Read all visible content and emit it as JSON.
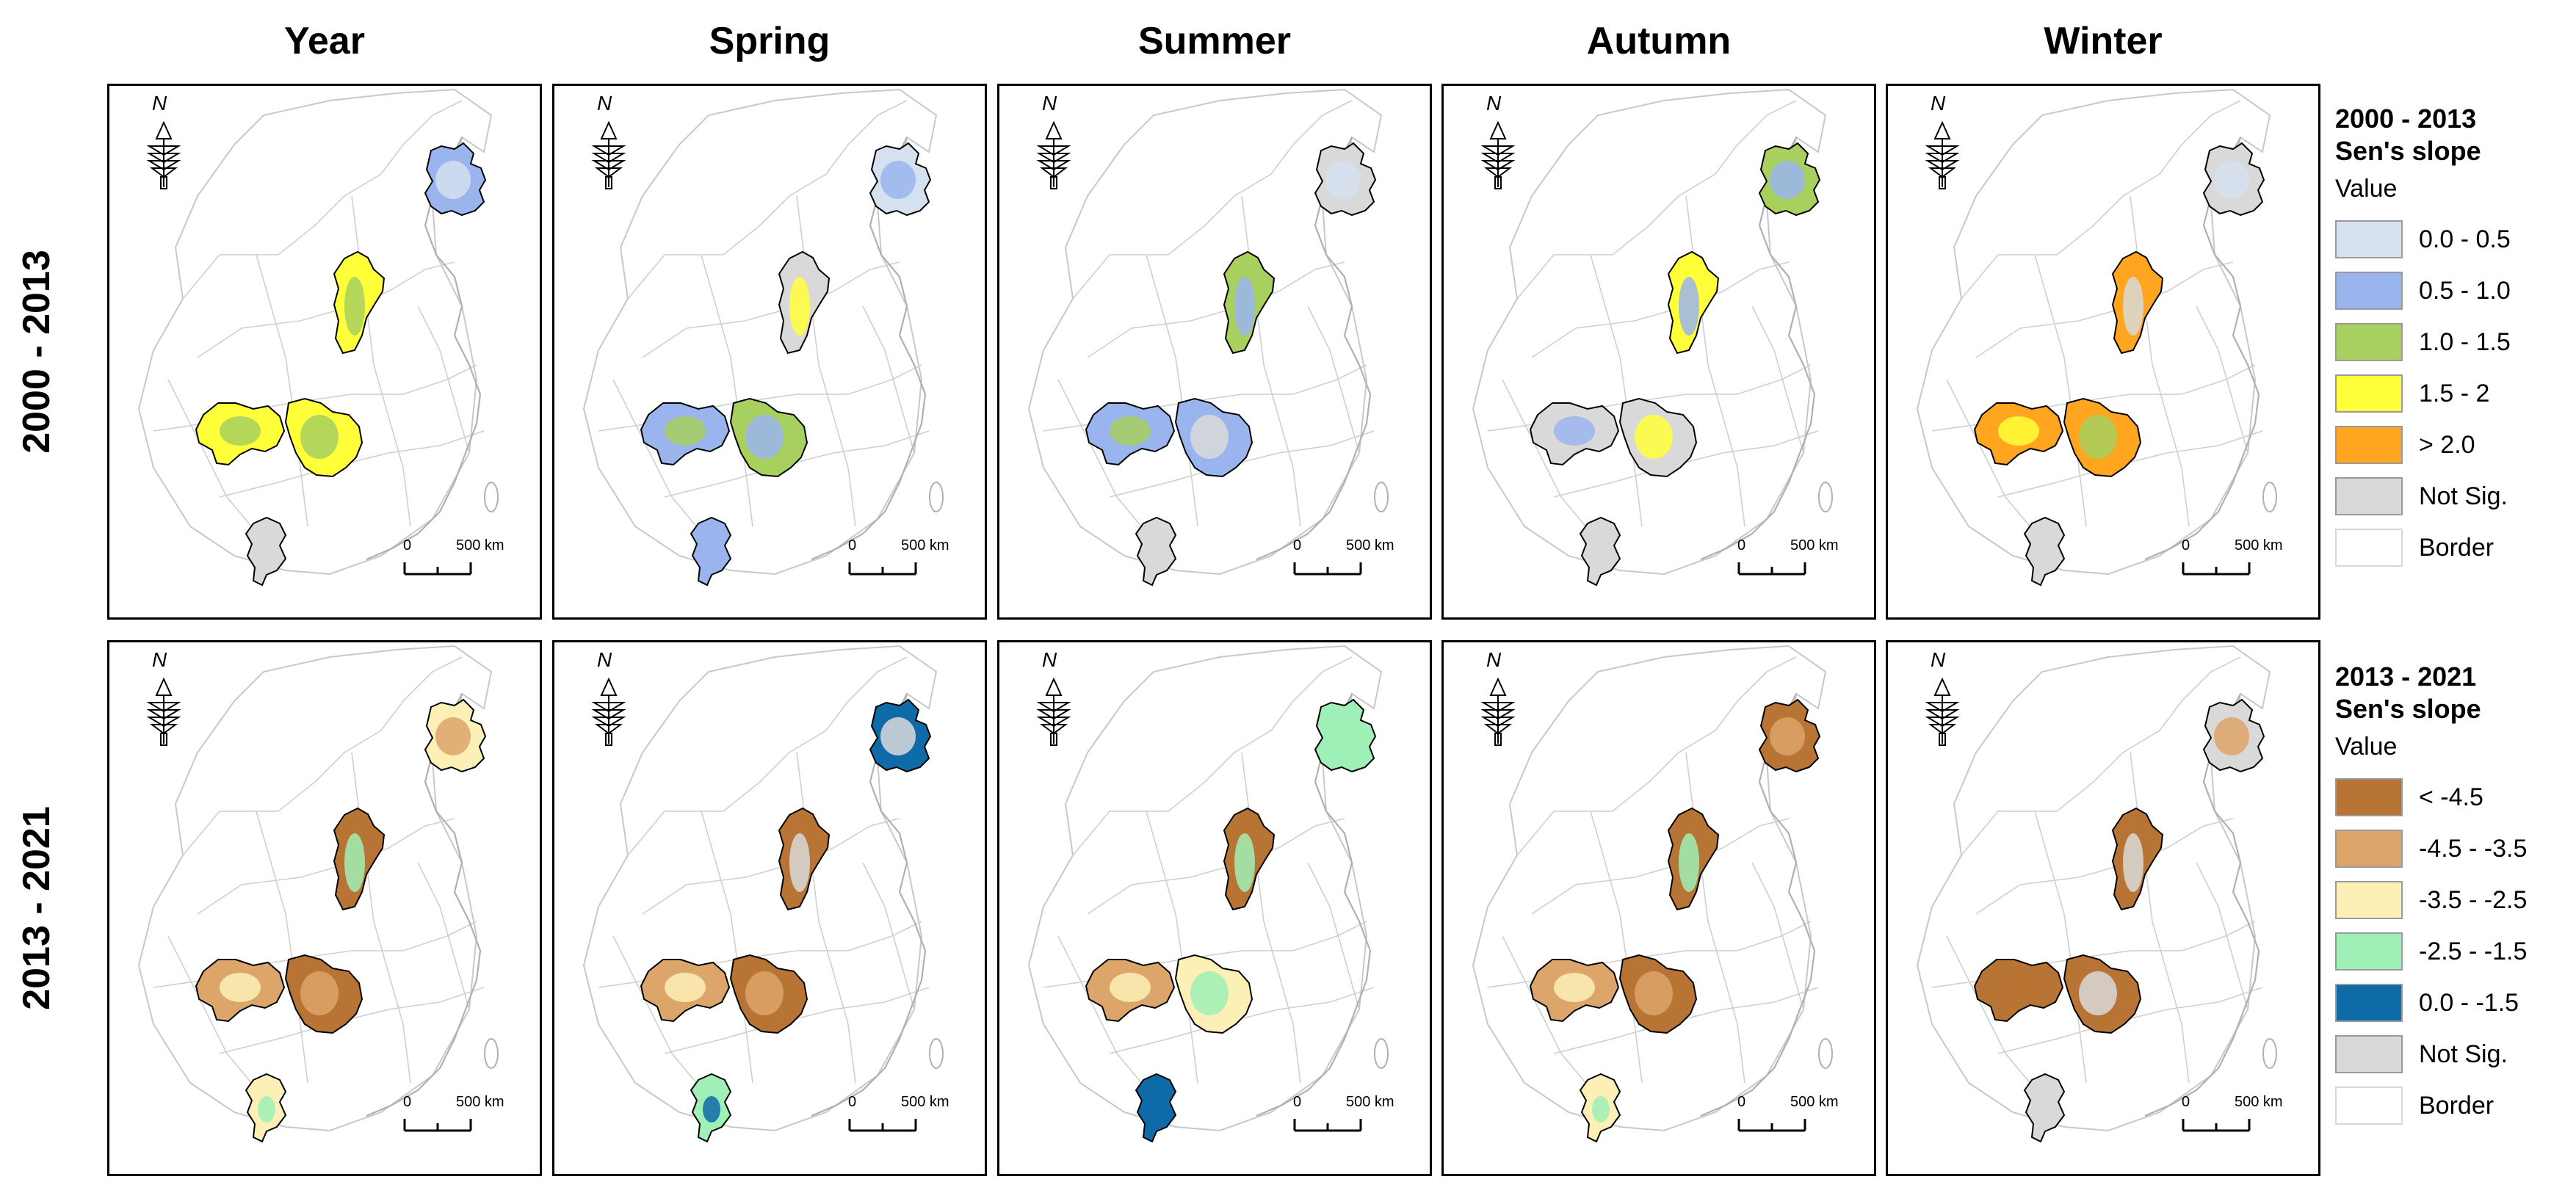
{
  "columns": [
    "Year",
    "Spring",
    "Summer",
    "Autumn",
    "Winter"
  ],
  "rows": [
    "2000 - 2013",
    "2013 - 2021"
  ],
  "map_common": {
    "north_label": "N",
    "scale_zero": "0",
    "scale_distance": "500 km"
  },
  "legends": [
    {
      "title_line1": "2000 - 2013",
      "title_line2": "Sen's slope",
      "subtitle": "Value",
      "items": [
        {
          "label": "0.0 - 0.5",
          "color": "#d5e1ee"
        },
        {
          "label": "0.5 - 1.0",
          "color": "#9ab5ee"
        },
        {
          "label": "1.0 - 1.5",
          "color": "#a7d05f"
        },
        {
          "label": "1.5 - 2",
          "color": "#ffff3a"
        },
        {
          "label": "> 2.0",
          "color": "#ffa51f"
        },
        {
          "label": "Not Sig.",
          "color": "#d9d9d9"
        },
        {
          "label": "Border",
          "color": "#ffffff"
        }
      ]
    },
    {
      "title_line1": "2013 - 2021",
      "title_line2": "Sen's slope",
      "subtitle": "Value",
      "items": [
        {
          "label": "< -4.5",
          "color": "#b87434"
        },
        {
          "label": "-4.5 - -3.5",
          "color": "#dca56a"
        },
        {
          "label": "-3.5 - -2.5",
          "color": "#fdf0b7"
        },
        {
          "label": "-2.5 - -1.5",
          "color": "#9ff0b6"
        },
        {
          "label": "0.0 - -1.5",
          "color": "#0f6aa8"
        },
        {
          "label": "Not Sig.",
          "color": "#d9d9d9"
        },
        {
          "label": "Border",
          "color": "#ffffff"
        }
      ]
    }
  ],
  "panels": [
    {
      "row": 0,
      "col": 0,
      "regions": {
        "northeast": [
          "#9ab5ee",
          "#d5e1ee"
        ],
        "north": [
          "#ffff3a",
          "#a7d05f"
        ],
        "sichuan": [
          "#ffff3a",
          "#a7d05f"
        ],
        "central": [
          "#ffff3a",
          "#a7d05f"
        ],
        "south": [
          "#d9d9d9",
          "#d9d9d9"
        ]
      }
    },
    {
      "row": 0,
      "col": 1,
      "regions": {
        "northeast": [
          "#d5e1ee",
          "#9ab5ee"
        ],
        "north": [
          "#d9d9d9",
          "#ffff3a"
        ],
        "sichuan": [
          "#9ab5ee",
          "#a7d05f"
        ],
        "central": [
          "#a7d05f",
          "#9ab5ee"
        ],
        "south": [
          "#9ab5ee",
          "#9ab5ee"
        ]
      }
    },
    {
      "row": 0,
      "col": 2,
      "regions": {
        "northeast": [
          "#d9d9d9",
          "#d5e1ee"
        ],
        "north": [
          "#a7d05f",
          "#9ab5ee"
        ],
        "sichuan": [
          "#9ab5ee",
          "#a7d05f"
        ],
        "central": [
          "#9ab5ee",
          "#d9d9d9"
        ],
        "south": [
          "#d9d9d9",
          "#d9d9d9"
        ]
      }
    },
    {
      "row": 0,
      "col": 3,
      "regions": {
        "northeast": [
          "#a7d05f",
          "#9ab5ee"
        ],
        "north": [
          "#ffff3a",
          "#9ab5ee"
        ],
        "sichuan": [
          "#d9d9d9",
          "#9ab5ee"
        ],
        "central": [
          "#d9d9d9",
          "#ffff3a"
        ],
        "south": [
          "#d9d9d9",
          "#d9d9d9"
        ]
      }
    },
    {
      "row": 0,
      "col": 4,
      "regions": {
        "northeast": [
          "#d9d9d9",
          "#d5e1ee"
        ],
        "north": [
          "#ffa51f",
          "#d9d9d9"
        ],
        "sichuan": [
          "#ffa51f",
          "#ffff3a"
        ],
        "central": [
          "#ffa51f",
          "#a7d05f"
        ],
        "south": [
          "#d9d9d9",
          "#d9d9d9"
        ]
      }
    },
    {
      "row": 1,
      "col": 0,
      "regions": {
        "northeast": [
          "#fdf0b7",
          "#dca56a"
        ],
        "north": [
          "#b87434",
          "#9ff0b6"
        ],
        "sichuan": [
          "#dca56a",
          "#fdf0b7"
        ],
        "central": [
          "#b87434",
          "#dca56a"
        ],
        "south": [
          "#fdf0b7",
          "#9ff0b6"
        ]
      }
    },
    {
      "row": 1,
      "col": 1,
      "regions": {
        "northeast": [
          "#0f6aa8",
          "#d9d9d9"
        ],
        "north": [
          "#b87434",
          "#d9d9d9"
        ],
        "sichuan": [
          "#dca56a",
          "#fdf0b7"
        ],
        "central": [
          "#b87434",
          "#dca56a"
        ],
        "south": [
          "#9ff0b6",
          "#0f6aa8"
        ]
      }
    },
    {
      "row": 1,
      "col": 2,
      "regions": {
        "northeast": [
          "#9ff0b6",
          "#9ff0b6"
        ],
        "north": [
          "#b87434",
          "#9ff0b6"
        ],
        "sichuan": [
          "#dca56a",
          "#fdf0b7"
        ],
        "central": [
          "#fdf0b7",
          "#9ff0b6"
        ],
        "south": [
          "#0f6aa8",
          "#0f6aa8"
        ]
      }
    },
    {
      "row": 1,
      "col": 3,
      "regions": {
        "northeast": [
          "#b87434",
          "#dca56a"
        ],
        "north": [
          "#b87434",
          "#9ff0b6"
        ],
        "sichuan": [
          "#dca56a",
          "#fdf0b7"
        ],
        "central": [
          "#b87434",
          "#dca56a"
        ],
        "south": [
          "#fdf0b7",
          "#9ff0b6"
        ]
      }
    },
    {
      "row": 1,
      "col": 4,
      "regions": {
        "northeast": [
          "#d9d9d9",
          "#dca56a"
        ],
        "north": [
          "#b87434",
          "#d9d9d9"
        ],
        "sichuan": [
          "#b87434",
          "#b87434"
        ],
        "central": [
          "#b87434",
          "#d9d9d9"
        ],
        "south": [
          "#d9d9d9",
          "#d9d9d9"
        ]
      }
    }
  ]
}
